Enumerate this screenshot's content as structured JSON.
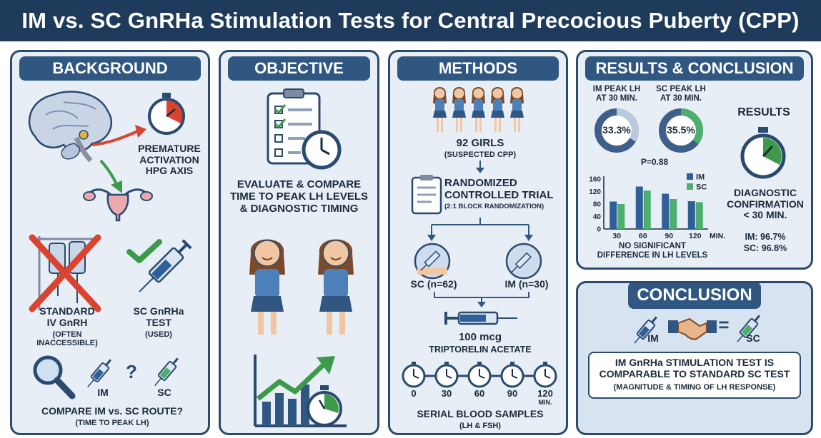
{
  "title": "IM vs. SC GnRHa Stimulation Tests for Central Precocious Puberty (CPP)",
  "colors": {
    "navy": "#1f3b5c",
    "panel": "#e7eef6",
    "header": "#2f5782",
    "im": "#2f5f98",
    "sc": "#4caf6e",
    "red": "#d9432f",
    "green": "#3c9a4a"
  },
  "background": {
    "header": "BACKGROUND",
    "hpg_label": [
      "PREMATURE",
      "ACTIVATION",
      "HPG AXIS"
    ],
    "iv_label": [
      "STANDARD",
      "IV GnRH"
    ],
    "iv_sub": "(OFTEN INACCESSIBLE)",
    "sc_label": [
      "SC GnRHa",
      "TEST"
    ],
    "sc_sub": "(USED)",
    "im_tag": "IM",
    "sc_tag": "SC",
    "question_mark": "?",
    "question": "COMPARE IM vs. SC ROUTE?",
    "question_sub": "(TIME TO PEAK LH)",
    "icons": [
      "brain-icon",
      "stopwatch-icon",
      "uterus-icon",
      "iv-bag-icon",
      "syringe-icon",
      "magnifier-icon",
      "check-icon",
      "cross-icon"
    ]
  },
  "objective": {
    "header": "OBJECTIVE",
    "text": [
      "EVALUATE & COMPARE",
      "TIME TO PEAK LH LEVELS",
      "& DIAGNOSTIC TIMING"
    ],
    "icons": [
      "clipboard-icon",
      "clock-icon",
      "girl-icon",
      "trend-chart-icon",
      "stopwatch-icon"
    ]
  },
  "methods": {
    "header": "METHODS",
    "girls": "92 GIRLS",
    "girls_sub": "(SUSPECTED CPP)",
    "rct": [
      "RANDOMIZED",
      "CONTROLLED TRIAL"
    ],
    "rct_sub": "(2:1 BLOCK RANDOMIZATION)",
    "sc_arm": "SC (n=62)",
    "im_arm": "IM (n=30)",
    "dose": "100 mcg",
    "drug": "TRIPTORELIN ACETATE",
    "timepoints": [
      "0",
      "30",
      "60",
      "90",
      "120"
    ],
    "time_unit": "MIN.",
    "samples": "SERIAL BLOOD SAMPLES",
    "samples_sub": "(LH & FSH)"
  },
  "results": {
    "header": "RESULTS & CONCLUSION",
    "im_peak_label": [
      "IM PEAK LH",
      "AT 30 MIN."
    ],
    "sc_peak_label": [
      "SC PEAK LH",
      "AT 30 MIN."
    ],
    "im_peak_value": "33.3%",
    "sc_peak_value": "35.5%",
    "im_peak_fraction": 0.333,
    "sc_peak_fraction": 0.355,
    "p_value": "P=0.88",
    "results_title": "RESULTS",
    "diag": [
      "DIAGNOSTIC",
      "CONFIRMATION",
      "< 30 MIN."
    ],
    "im_rate": "IM: 96.7%",
    "sc_rate": "SC: 96.8%",
    "no_diff": [
      "NO SIGNIFICANT",
      "DIFFERENCE IN LH LEVELS"
    ]
  },
  "chart_data": {
    "type": "bar",
    "categories": [
      "30",
      "60",
      "90",
      "120"
    ],
    "category_suffix_last": "MIN.",
    "series": [
      {
        "name": "IM",
        "values": [
          88,
          136,
          113,
          89
        ]
      },
      {
        "name": "SC",
        "values": [
          80,
          123,
          96,
          86
        ]
      }
    ],
    "yticks": [
      "160",
      "120",
      "80",
      "40",
      "0"
    ],
    "ylim": [
      0,
      160
    ],
    "legend": "top-right"
  },
  "conclusion": {
    "header": "CONCLUSION",
    "im_tag": "IM",
    "sc_tag": "SC",
    "equals": "=",
    "text": [
      "IM GnRHa STIMULATION TEST IS",
      "COMPARABLE TO STANDARD SC TEST"
    ],
    "sub": "(MAGNITUDE & TIMING OF LH RESPONSE)"
  }
}
